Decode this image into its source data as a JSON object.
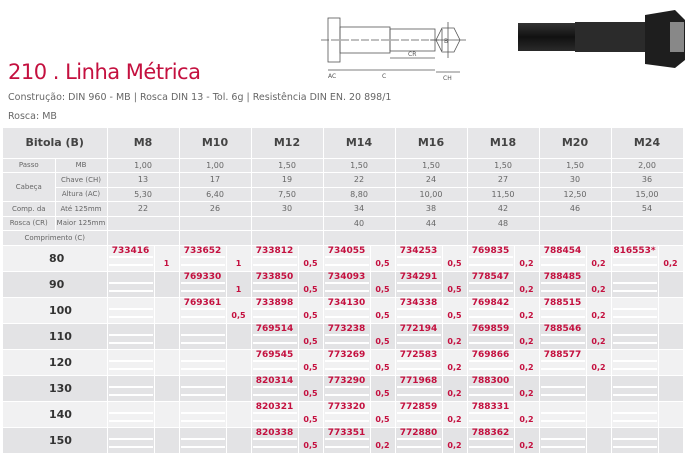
{
  "header": {
    "title": "210 . Linha Métrica",
    "subtitle": "Construção: DIN 960 - MB | Rosca DIN 13 - Tol. 6g | Resistência DIN EN. 20 898/1",
    "rosca": "Rosca: MB",
    "drawing_labels": {
      "b": "B",
      "cr": "CR",
      "ac": "AC",
      "c": "C",
      "ch": "CH"
    }
  },
  "colors": {
    "accent": "#c4103f",
    "header_bg": "#e6e6e8",
    "row_light": "#f1f1f2",
    "row_dark": "#e3e3e5"
  },
  "table": {
    "bitola_label": "Bitola (B)",
    "sizes": [
      "M8",
      "M10",
      "M12",
      "M14",
      "M16",
      "M18",
      "M20",
      "M24"
    ],
    "specs": [
      {
        "group": "Passo",
        "label": "MB",
        "values": [
          "1,00",
          "1,00",
          "1,50",
          "1,50",
          "1,50",
          "1,50",
          "1,50",
          "2,00"
        ]
      },
      {
        "group": "Cabeça",
        "label": "Chave (CH)",
        "values": [
          "13",
          "17",
          "19",
          "22",
          "24",
          "27",
          "30",
          "36"
        ]
      },
      {
        "group": "",
        "label": "Altura (AC)",
        "values": [
          "5,30",
          "6,40",
          "7,50",
          "8,80",
          "10,00",
          "11,50",
          "12,50",
          "15,00"
        ]
      },
      {
        "group": "Comp. da",
        "label": "Até 125mm",
        "values": [
          "22",
          "26",
          "30",
          "34",
          "38",
          "42",
          "46",
          "54"
        ]
      },
      {
        "group": "Rosca (CR)",
        "label": "Maior 125mm",
        "values": [
          "",
          "",
          "",
          "40",
          "44",
          "48",
          "",
          ""
        ]
      }
    ],
    "comprimento_label": "Comprimento (C)",
    "rows": [
      {
        "length": "80",
        "cells": [
          [
            "733416",
            "1"
          ],
          [
            "733652",
            "1"
          ],
          [
            "733812",
            "0,5"
          ],
          [
            "734055",
            "0,5"
          ],
          [
            "734253",
            "0,5"
          ],
          [
            "769835",
            "0,2"
          ],
          [
            "788454",
            "0,2"
          ],
          [
            "816553*",
            "0,2"
          ]
        ]
      },
      {
        "length": "90",
        "cells": [
          [
            "",
            ""
          ],
          [
            "769330",
            "1"
          ],
          [
            "733850",
            "0,5"
          ],
          [
            "734093",
            "0,5"
          ],
          [
            "734291",
            "0,5"
          ],
          [
            "778547",
            "0,2"
          ],
          [
            "788485",
            "0,2"
          ],
          [
            "",
            ""
          ]
        ]
      },
      {
        "length": "100",
        "cells": [
          [
            "",
            ""
          ],
          [
            "769361",
            "0,5"
          ],
          [
            "733898",
            "0,5"
          ],
          [
            "734130",
            "0,5"
          ],
          [
            "734338",
            "0,5"
          ],
          [
            "769842",
            "0,2"
          ],
          [
            "788515",
            "0,2"
          ],
          [
            "",
            ""
          ]
        ]
      },
      {
        "length": "110",
        "cells": [
          [
            "",
            ""
          ],
          [
            "",
            ""
          ],
          [
            "769514",
            "0,5"
          ],
          [
            "773238",
            "0,5"
          ],
          [
            "772194",
            "0,2"
          ],
          [
            "769859",
            "0,2"
          ],
          [
            "788546",
            "0,2"
          ],
          [
            "",
            ""
          ]
        ]
      },
      {
        "length": "120",
        "cells": [
          [
            "",
            ""
          ],
          [
            "",
            ""
          ],
          [
            "769545",
            "0,5"
          ],
          [
            "773269",
            "0,5"
          ],
          [
            "772583",
            "0,2"
          ],
          [
            "769866",
            "0,2"
          ],
          [
            "788577",
            "0,2"
          ],
          [
            "",
            ""
          ]
        ]
      },
      {
        "length": "130",
        "cells": [
          [
            "",
            ""
          ],
          [
            "",
            ""
          ],
          [
            "820314",
            "0,5"
          ],
          [
            "773290",
            "0,5"
          ],
          [
            "771968",
            "0,2"
          ],
          [
            "788300",
            "0,2"
          ],
          [
            "",
            ""
          ],
          [
            "",
            ""
          ]
        ]
      },
      {
        "length": "140",
        "cells": [
          [
            "",
            ""
          ],
          [
            "",
            ""
          ],
          [
            "820321",
            "0,5"
          ],
          [
            "773320",
            "0,5"
          ],
          [
            "772859",
            "0,2"
          ],
          [
            "788331",
            "0,2"
          ],
          [
            "",
            ""
          ],
          [
            "",
            ""
          ]
        ]
      },
      {
        "length": "150",
        "cells": [
          [
            "",
            ""
          ],
          [
            "",
            ""
          ],
          [
            "820338",
            "0,5"
          ],
          [
            "773351",
            "0,2"
          ],
          [
            "772880",
            "0,2"
          ],
          [
            "788362",
            "0,2"
          ],
          [
            "",
            ""
          ],
          [
            "",
            ""
          ]
        ]
      }
    ]
  }
}
